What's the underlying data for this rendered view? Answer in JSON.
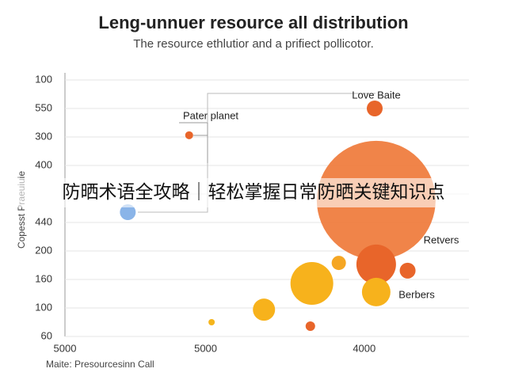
{
  "chart_data": {
    "type": "bubble",
    "title": "Leng-unnuer resource all distribution",
    "subtitle": "The resource ethlutior and a prifiect pollicotor.",
    "x_label": "Maite: Presourcesinn Call",
    "y_label": "Copesst Praeuiuie",
    "xcategories": [
      "5000",
      "5000",
      "4000"
    ],
    "xcategory_positions": [
      0,
      0.94,
      2
    ],
    "ycategories": [
      "60",
      "100",
      "160",
      "200",
      "440",
      null,
      "400",
      "300",
      "550",
      "100"
    ],
    "xlim": [
      0,
      2.7
    ],
    "ylim": [
      0,
      9
    ],
    "x": [
      2.07,
      0.83,
      2.08,
      0.42,
      2.08,
      1.83,
      2.29,
      1.65,
      2.08,
      1.33,
      0.98,
      1.64
    ],
    "y": [
      8.0,
      7.06,
      4.78,
      4.36,
      2.53,
      2.58,
      2.31,
      1.86,
      1.56,
      0.94,
      0.5,
      0.36
    ],
    "sizes": [
      10,
      5,
      75,
      10,
      25,
      9,
      10,
      27,
      18,
      14,
      4,
      6
    ],
    "colors": [
      "#e8652a",
      "#e8652a",
      "#ef7a3a",
      "#8ab4e8",
      "#e8652a",
      "#f5a623",
      "#e8652a",
      "#f7b21c",
      "#f7b21c",
      "#f7b21c",
      "#f5b51c",
      "#e8652a"
    ],
    "annotations": [
      "Love Baite",
      "Pater planet",
      "Retvers",
      "Berbers"
    ],
    "banner": "防晒术语全攻略｜轻松掌握日常防晒关键知识点"
  }
}
